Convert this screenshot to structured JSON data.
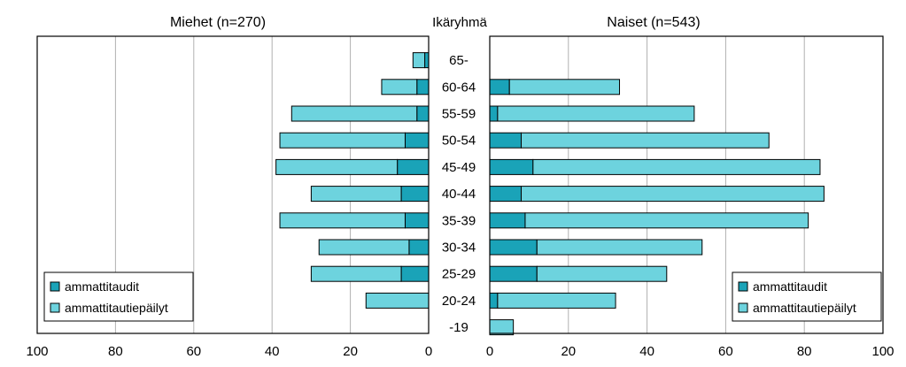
{
  "chart_data": {
    "type": "bar",
    "center_label": "Ikäryhmä",
    "categories": [
      "65-",
      "60-64",
      "55-59",
      "50-54",
      "45-49",
      "40-44",
      "35-39",
      "30-34",
      "25-29",
      "20-24",
      "-19"
    ],
    "xlim": [
      0,
      100
    ],
    "x_ticks": [
      "0",
      "20",
      "40",
      "60",
      "80",
      "100"
    ],
    "x_ticks_left": [
      "100",
      "80",
      "60",
      "40",
      "20",
      "0"
    ],
    "grid": "vertical",
    "colors": {
      "ammattitaudit": "#1aa3b8",
      "ammattitautiepäilyt": "#6dd3de",
      "grid": "#b0b0b0"
    },
    "panels": [
      {
        "title": "Miehet (n=270)",
        "direction": "left",
        "legend_position": "bottom-left",
        "series": [
          {
            "name": "ammattitaudit",
            "values": [
              1,
              3,
              3,
              6,
              8,
              7,
              6,
              5,
              7,
              0,
              0
            ]
          },
          {
            "name": "ammattitautiepäilyt",
            "values": [
              3,
              9,
              32,
              32,
              31,
              23,
              32,
              23,
              23,
              16,
              0
            ]
          }
        ]
      },
      {
        "title": "Naiset (n=543)",
        "direction": "right",
        "legend_position": "bottom-right",
        "series": [
          {
            "name": "ammattitaudit",
            "values": [
              0,
              5,
              2,
              8,
              11,
              8,
              9,
              12,
              12,
              2,
              0
            ]
          },
          {
            "name": "ammattitautiepäilyt",
            "values": [
              0,
              28,
              50,
              63,
              73,
              77,
              72,
              42,
              33,
              30,
              6
            ]
          }
        ]
      }
    ]
  }
}
